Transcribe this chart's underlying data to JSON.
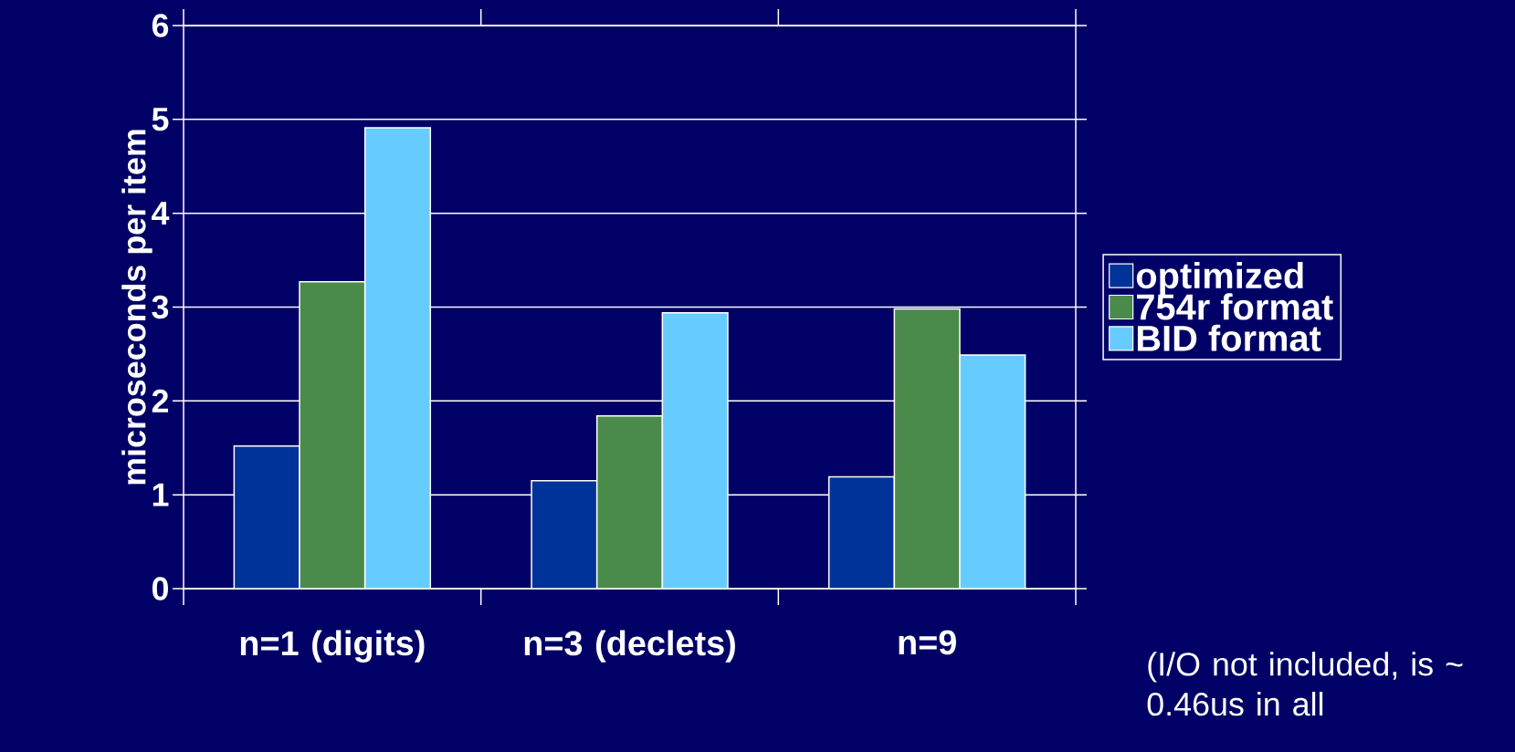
{
  "chart_data": {
    "type": "bar",
    "ylabel": "microseconds per item",
    "categories": [
      "n=1 (digits)",
      "n=3 (declets)",
      "n=9"
    ],
    "series": [
      {
        "name": "optimized",
        "color": "#003399",
        "values": [
          1.52,
          1.15,
          1.19
        ]
      },
      {
        "name": "754r format",
        "color": "#4a8a4a",
        "values": [
          3.27,
          1.84,
          2.98
        ]
      },
      {
        "name": "BID format",
        "color": "#66ccff",
        "values": [
          4.91,
          2.94,
          2.49
        ]
      }
    ],
    "ylim": [
      0,
      6
    ],
    "yticks": [
      0,
      1,
      2,
      3,
      4,
      5,
      6
    ],
    "grid": "y",
    "legend": "right",
    "annotations": [
      "(I/O not included, is ~ 0.46us in all"
    ]
  }
}
